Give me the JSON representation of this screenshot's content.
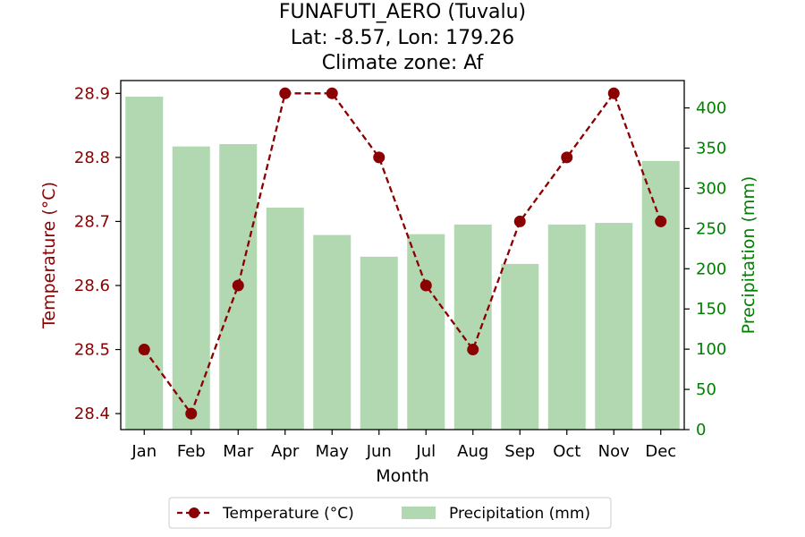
{
  "chart_data": {
    "type": "bar+line",
    "title_lines": [
      "FUNAFUTI_AERO (Tuvalu)",
      "Lat: -8.57, Lon: 179.26",
      "Climate zone: Af"
    ],
    "xlabel": "Month",
    "ylabel_left": "Temperature (°C)",
    "ylabel_right": "Precipitation (mm)",
    "categories": [
      "Jan",
      "Feb",
      "Mar",
      "Apr",
      "May",
      "Jun",
      "Jul",
      "Aug",
      "Sep",
      "Oct",
      "Nov",
      "Dec"
    ],
    "series": [
      {
        "name": "Temperature (°C)",
        "axis": "left",
        "kind": "line",
        "style": "dashed with circle markers",
        "color": "#8b0000",
        "values": [
          28.5,
          28.4,
          28.6,
          28.9,
          28.9,
          28.8,
          28.6,
          28.5,
          28.7,
          28.8,
          28.9,
          28.7
        ]
      },
      {
        "name": "Precipitation (mm)",
        "axis": "right",
        "kind": "bar",
        "color": "#b2d8b2",
        "values": [
          414,
          352,
          355,
          276,
          242,
          215,
          243,
          255,
          206,
          255,
          257,
          334
        ]
      }
    ],
    "ylim_left": [
      28.375,
      28.92
    ],
    "ylim_right": [
      0,
      434
    ],
    "yticks_left": [
      "28.4",
      "28.5",
      "28.6",
      "28.7",
      "28.8",
      "28.9"
    ],
    "yticks_right": [
      "0",
      "50",
      "100",
      "150",
      "200",
      "250",
      "300",
      "350",
      "400"
    ],
    "left_axis_color": "#8b0000",
    "right_axis_color": "#008000",
    "legend_position": "bottom-center",
    "grid": false
  }
}
